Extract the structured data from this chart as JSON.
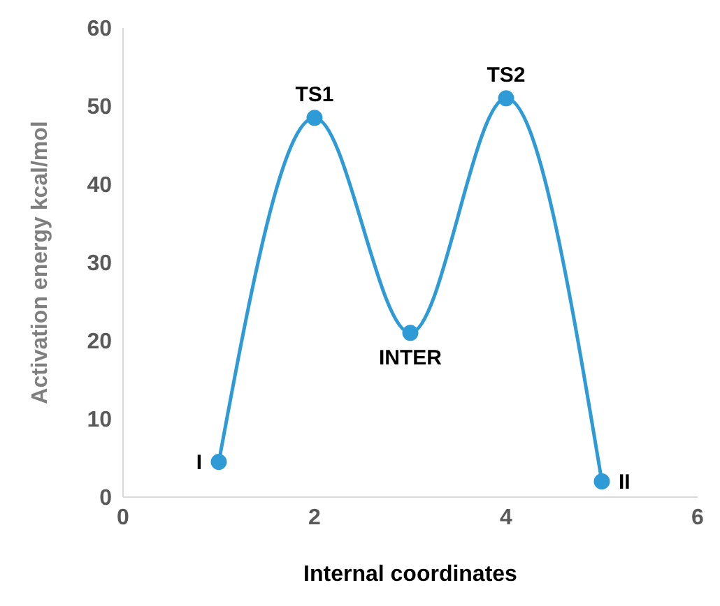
{
  "chart_data": {
    "type": "line",
    "xlabel": "Internal coordinates",
    "ylabel": "Activation energy kcal/mol",
    "x": [
      1,
      2,
      3,
      4,
      5
    ],
    "series": [
      {
        "color": "#2e9bd6",
        "values": [
          4.5,
          48.5,
          21,
          51,
          2
        ]
      }
    ],
    "xlim": [
      0,
      6
    ],
    "xticks": [
      0,
      2,
      4,
      6
    ],
    "ylim": [
      0,
      60
    ],
    "yticks": [
      0,
      10,
      20,
      30,
      40,
      50,
      60
    ],
    "grid": false,
    "legend": false,
    "marker": "circle",
    "line_style": "solid",
    "annotations": [
      {
        "text": "I",
        "x": 1,
        "y": 4.5
      },
      {
        "text": "TS1",
        "x": 2,
        "y": 48.5
      },
      {
        "text": "INTER",
        "x": 3,
        "y": 21
      },
      {
        "text": "TS2",
        "x": 4,
        "y": 51
      },
      {
        "text": "II",
        "x": 5,
        "y": 2
      }
    ]
  }
}
